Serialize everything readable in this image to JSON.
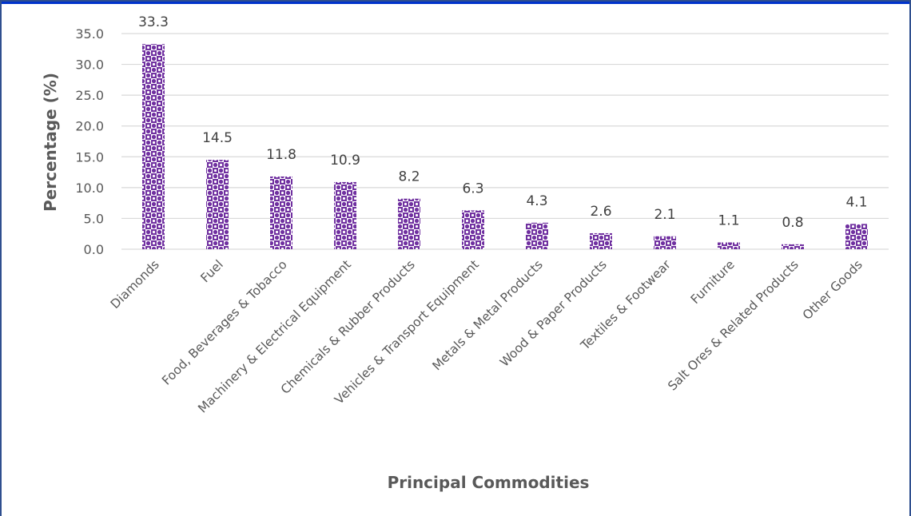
{
  "chart_data": {
    "type": "bar",
    "title": "",
    "xlabel": "Principal Commodities",
    "ylabel": "Percentage  (%)",
    "ylim": [
      0,
      35
    ],
    "yticks": [
      "0.0",
      "5.0",
      "10.0",
      "15.0",
      "20.0",
      "25.0",
      "30.0",
      "35.0"
    ],
    "grid": true,
    "legend": "none",
    "categories": [
      "Diamonds",
      "Fuel",
      "Food, Beverages & Tobacco",
      "Machinery & Electrical Equipment",
      "Chemicals & Rubber Products",
      "Vehicles & Transport Equipment",
      "Metals & Metal Products",
      "Wood & Paper Products",
      "Textiles & Footwear",
      "Furniture",
      "Salt Ores & Related Products",
      "Other Goods"
    ],
    "values": [
      33.3,
      14.5,
      11.8,
      10.9,
      8.2,
      6.3,
      4.3,
      2.6,
      2.1,
      1.1,
      0.8,
      4.1
    ],
    "value_labels": [
      "33.3",
      "14.5",
      "11.8",
      "10.9",
      "8.2",
      "6.3",
      "4.3",
      "2.6",
      "2.1",
      "1.1",
      "0.8",
      "4.1"
    ],
    "colors": {
      "bar_fill": "#7030a0",
      "pattern_background": "#ffffff",
      "gridline": "#d9d9d9",
      "frame_border": "#2f4f8f",
      "top_band": "#0033cc"
    }
  }
}
